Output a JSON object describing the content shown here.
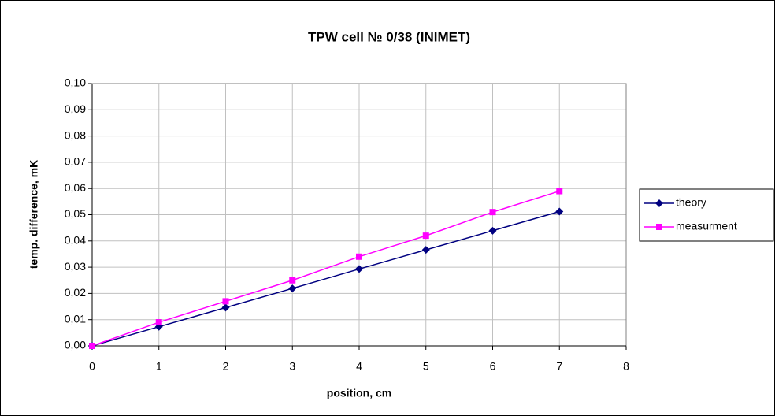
{
  "chart_data": {
    "type": "line",
    "title": "TPW cell № 0/38 (INIMET)",
    "x_label": "position, cm",
    "y_label": "temp. difference, mK",
    "x": [
      0,
      1,
      2,
      3,
      4,
      5,
      6,
      7
    ],
    "series": [
      {
        "name": "theory",
        "color": "#000080",
        "marker": "diamond",
        "values": [
          0,
          0.0073,
          0.0146,
          0.0219,
          0.0293,
          0.0366,
          0.0439,
          0.0512
        ]
      },
      {
        "name": "measurment",
        "color": "#ff00ff",
        "marker": "square",
        "values": [
          0,
          0.009,
          0.017,
          0.025,
          0.034,
          0.042,
          0.051,
          0.059
        ]
      }
    ],
    "xlim": [
      0,
      8
    ],
    "xticks": [
      0,
      1,
      2,
      3,
      4,
      5,
      6,
      7,
      8
    ],
    "ylim": [
      0,
      0.1
    ],
    "yticks": [
      {
        "value": 0,
        "label": "0,00"
      },
      {
        "value": 0.01,
        "label": "0,01"
      },
      {
        "value": 0.02,
        "label": "0,02"
      },
      {
        "value": 0.03,
        "label": "0,03"
      },
      {
        "value": 0.04,
        "label": "0,04"
      },
      {
        "value": 0.05,
        "label": "0,05"
      },
      {
        "value": 0.06,
        "label": "0,06"
      },
      {
        "value": 0.07,
        "label": "0,07"
      },
      {
        "value": 0.08,
        "label": "0,08"
      },
      {
        "value": 0.09,
        "label": "0,09"
      },
      {
        "value": 0.1,
        "label": "0,10"
      }
    ],
    "grid": true,
    "legend": "right"
  }
}
